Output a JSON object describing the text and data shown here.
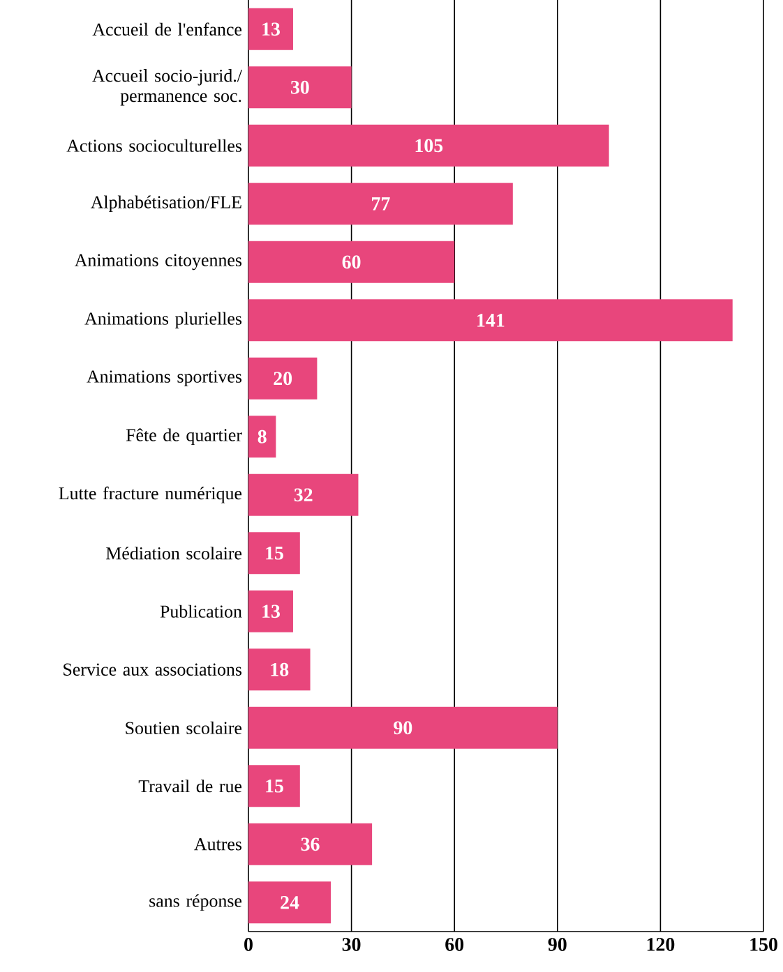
{
  "chart_data": {
    "type": "bar",
    "orientation": "horizontal",
    "categories": [
      "Accueil de l'enfance",
      "Accueil socio-jurid./ permanence soc.",
      "Actions socioculturelles",
      "Alphabétisation/FLE",
      "Animations citoyennes",
      "Animations plurielles",
      "Animations sportives",
      "Fête de quartier",
      "Lutte fracture numérique",
      "Médiation scolaire",
      "Publication",
      "Service aux associations",
      "Soutien scolaire",
      "Travail de rue",
      "Autres",
      "sans réponse"
    ],
    "values": [
      13,
      30,
      105,
      77,
      60,
      141,
      20,
      8,
      32,
      15,
      13,
      18,
      90,
      15,
      36,
      24
    ],
    "color": "#e8467c",
    "xlim": [
      0,
      150
    ],
    "xticks": [
      0,
      30,
      60,
      90,
      120,
      150
    ],
    "grid": "x",
    "data_labels": true
  }
}
